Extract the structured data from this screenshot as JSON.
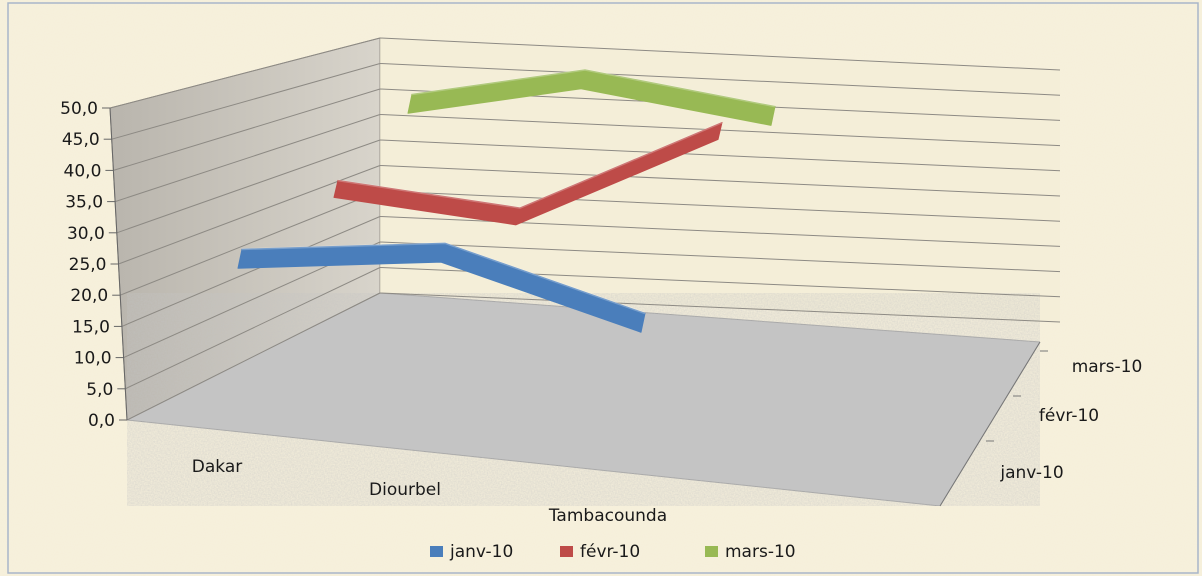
{
  "chart_data": {
    "type": "line",
    "categories": [
      "Dakar",
      "Diourbel",
      "Tambacounda"
    ],
    "series": [
      {
        "name": "janv-10",
        "values": [
          28.0,
          29.0,
          17.5
        ]
      },
      {
        "name": "févr-10",
        "values": [
          36.0,
          31.5,
          45.5
        ]
      },
      {
        "name": "mars-10",
        "values": [
          48.0,
          52.0,
          46.0
        ]
      }
    ],
    "ylim": [
      0,
      50
    ],
    "y_ticks": [
      "0,0",
      "5,0",
      "10,0",
      "15,0",
      "20,0",
      "25,0",
      "30,0",
      "35,0",
      "40,0",
      "45,0",
      "50,0"
    ],
    "depth_labels": [
      "janv-10",
      "févr-10",
      "mars-10"
    ],
    "colors": {
      "janv-10": "#4a7ebb",
      "févr-10": "#be4b48",
      "mars-10": "#98b954"
    },
    "legend_position": "bottom",
    "grid": true,
    "style": "3d-line"
  }
}
